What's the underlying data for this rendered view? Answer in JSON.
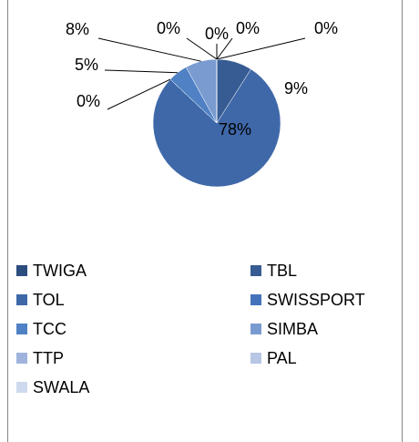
{
  "chart_data": {
    "type": "pie",
    "categories": [
      "TWIGA",
      "TBL",
      "TOL",
      "SWISSPORT",
      "TCC",
      "SIMBA",
      "TTP",
      "PAL",
      "SWALA"
    ],
    "values": [
      0,
      9,
      78,
      0,
      5,
      8,
      0,
      0,
      0
    ],
    "value_labels": [
      "0%",
      "9%",
      "78%",
      "0%",
      "5%",
      "8%",
      "0%",
      "0%",
      "0%"
    ],
    "colors": [
      "#2c4d7f",
      "#375c93",
      "#3f68a9",
      "#4573bb",
      "#4f81c4",
      "#7a9bd0",
      "#9fb3dc",
      "#b7c6e5",
      "#cfd9ee"
    ],
    "legend": "bottom"
  }
}
